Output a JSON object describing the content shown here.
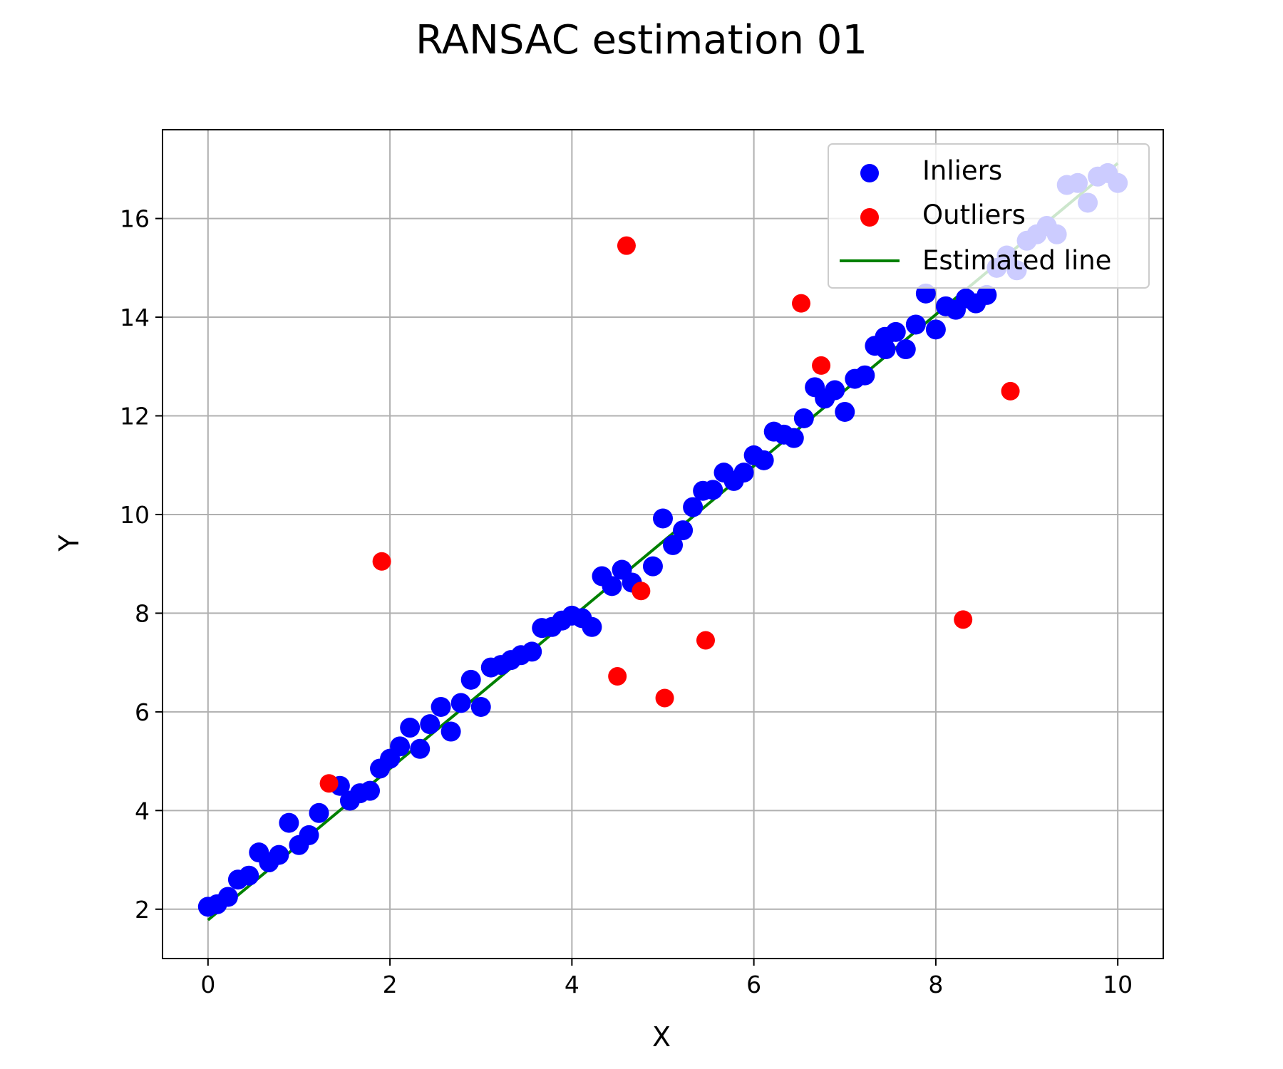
{
  "chart_data": {
    "type": "scatter",
    "title": "RANSAC estimation 01",
    "xlabel": "X",
    "ylabel": "Y",
    "xlim": [
      -0.5,
      10.5
    ],
    "ylim": [
      1.0,
      17.8
    ],
    "xticks": [
      0,
      2,
      4,
      6,
      8,
      10
    ],
    "yticks": [
      2,
      4,
      6,
      8,
      10,
      12,
      14,
      16
    ],
    "grid": true,
    "legend_position": "top-right",
    "legend": {
      "inliers": "Inliers",
      "outliers": "Outliers",
      "line": "Estimated line"
    },
    "colors": {
      "inliers": "#0000ff",
      "outliers": "#ff0000",
      "line": "#008000"
    },
    "series": [
      {
        "name": "Inliers",
        "kind": "scatter",
        "points": [
          [
            0.0,
            2.05
          ],
          [
            0.1,
            2.1
          ],
          [
            0.22,
            2.25
          ],
          [
            0.33,
            2.6
          ],
          [
            0.45,
            2.68
          ],
          [
            0.56,
            3.15
          ],
          [
            0.67,
            2.95
          ],
          [
            0.78,
            3.1
          ],
          [
            0.89,
            3.75
          ],
          [
            1.0,
            3.3
          ],
          [
            1.11,
            3.5
          ],
          [
            1.22,
            3.95
          ],
          [
            1.45,
            4.5
          ],
          [
            1.56,
            4.2
          ],
          [
            1.67,
            4.35
          ],
          [
            1.78,
            4.4
          ],
          [
            1.89,
            4.85
          ],
          [
            2.0,
            5.05
          ],
          [
            2.11,
            5.3
          ],
          [
            2.22,
            5.68
          ],
          [
            2.33,
            5.25
          ],
          [
            2.44,
            5.75
          ],
          [
            2.56,
            6.1
          ],
          [
            2.67,
            5.6
          ],
          [
            2.78,
            6.18
          ],
          [
            2.89,
            6.65
          ],
          [
            3.0,
            6.1
          ],
          [
            3.11,
            6.9
          ],
          [
            3.22,
            6.95
          ],
          [
            3.33,
            7.05
          ],
          [
            3.44,
            7.15
          ],
          [
            3.56,
            7.22
          ],
          [
            3.67,
            7.7
          ],
          [
            3.78,
            7.72
          ],
          [
            3.89,
            7.85
          ],
          [
            4.0,
            7.95
          ],
          [
            4.11,
            7.9
          ],
          [
            4.22,
            7.72
          ],
          [
            4.33,
            8.75
          ],
          [
            4.44,
            8.55
          ],
          [
            4.55,
            8.88
          ],
          [
            4.66,
            8.62
          ],
          [
            4.89,
            8.95
          ],
          [
            5.0,
            9.92
          ],
          [
            5.11,
            9.38
          ],
          [
            5.22,
            9.68
          ],
          [
            5.33,
            10.15
          ],
          [
            5.44,
            10.48
          ],
          [
            5.55,
            10.5
          ],
          [
            5.67,
            10.85
          ],
          [
            5.78,
            10.68
          ],
          [
            5.89,
            10.85
          ],
          [
            6.0,
            11.2
          ],
          [
            6.11,
            11.1
          ],
          [
            6.22,
            11.68
          ],
          [
            6.33,
            11.62
          ],
          [
            6.44,
            11.55
          ],
          [
            6.55,
            11.95
          ],
          [
            6.67,
            12.58
          ],
          [
            6.78,
            12.35
          ],
          [
            6.89,
            12.52
          ],
          [
            7.0,
            12.08
          ],
          [
            7.11,
            12.75
          ],
          [
            7.22,
            12.82
          ],
          [
            7.33,
            13.42
          ],
          [
            7.44,
            13.6
          ],
          [
            7.45,
            13.35
          ],
          [
            7.56,
            13.7
          ],
          [
            7.67,
            13.35
          ],
          [
            7.78,
            13.85
          ],
          [
            7.89,
            14.48
          ],
          [
            8.0,
            13.75
          ],
          [
            8.11,
            14.22
          ],
          [
            8.22,
            14.15
          ],
          [
            8.33,
            14.38
          ],
          [
            8.44,
            14.28
          ],
          [
            8.56,
            14.45
          ],
          [
            8.67,
            15.0
          ],
          [
            8.78,
            15.25
          ],
          [
            8.89,
            14.95
          ],
          [
            9.0,
            15.55
          ],
          [
            9.11,
            15.68
          ],
          [
            9.22,
            15.85
          ],
          [
            9.33,
            15.68
          ],
          [
            9.44,
            16.68
          ],
          [
            9.56,
            16.72
          ],
          [
            9.67,
            16.32
          ],
          [
            9.78,
            16.85
          ],
          [
            9.89,
            16.92
          ],
          [
            10.0,
            16.72
          ]
        ]
      },
      {
        "name": "Outliers",
        "kind": "scatter",
        "points": [
          [
            1.33,
            4.55
          ],
          [
            1.91,
            9.05
          ],
          [
            4.5,
            6.72
          ],
          [
            4.6,
            15.45
          ],
          [
            4.76,
            8.45
          ],
          [
            5.02,
            6.28
          ],
          [
            5.47,
            7.45
          ],
          [
            6.52,
            14.28
          ],
          [
            6.74,
            13.02
          ],
          [
            8.3,
            7.87
          ],
          [
            8.82,
            12.5
          ]
        ]
      },
      {
        "name": "Estimated line",
        "kind": "line",
        "points": [
          [
            0.0,
            1.78
          ],
          [
            10.0,
            17.12
          ]
        ]
      }
    ]
  }
}
